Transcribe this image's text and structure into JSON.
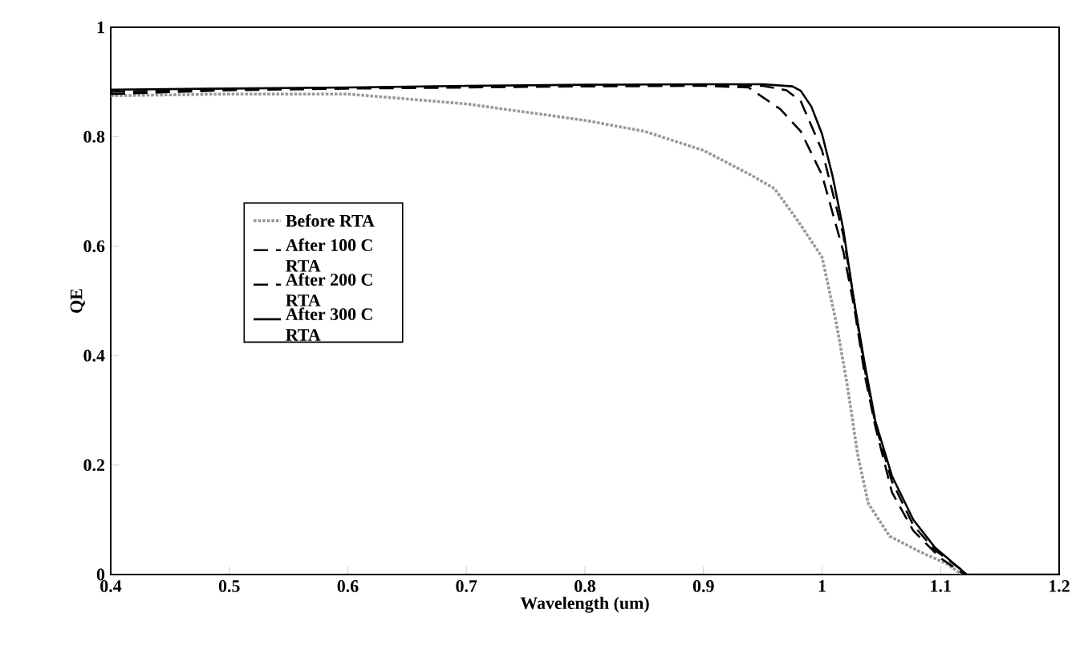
{
  "chart_data": {
    "type": "line",
    "xlabel": "Wavelength (um)",
    "ylabel": "QE",
    "xlim": [
      0.4,
      1.2
    ],
    "ylim": [
      0,
      1
    ],
    "xticks": [
      0.4,
      0.5,
      0.6,
      0.7,
      0.8,
      0.9,
      1,
      1.1,
      1.2
    ],
    "yticks": [
      0,
      0.2,
      0.4,
      0.6,
      0.8,
      1
    ],
    "legend": "left",
    "grid": false,
    "marker": "none",
    "series": [
      {
        "name": "Before RTA",
        "color": "#999999",
        "line_style": "dotted",
        "x": [
          0.4,
          0.5,
          0.6,
          0.7,
          0.8,
          0.85,
          0.9,
          0.94,
          0.96,
          0.98,
          1.0,
          1.012,
          1.021,
          1.03,
          1.039,
          1.057,
          1.084,
          1.105,
          1.118
        ],
        "values": [
          0.875,
          0.878,
          0.878,
          0.86,
          0.83,
          0.81,
          0.775,
          0.73,
          0.705,
          0.645,
          0.58,
          0.46,
          0.35,
          0.22,
          0.13,
          0.07,
          0.04,
          0.02,
          0.0
        ]
      },
      {
        "name": "After 100 C RTA",
        "color": "#000000",
        "line_style": "dashed",
        "x": [
          0.4,
          0.5,
          0.6,
          0.7,
          0.8,
          0.9,
          0.938,
          0.965,
          0.982,
          1.0,
          1.018,
          1.027,
          1.036,
          1.045,
          1.059,
          1.077,
          1.1,
          1.12
        ],
        "values": [
          0.878,
          0.885,
          0.888,
          0.89,
          0.892,
          0.893,
          0.89,
          0.85,
          0.81,
          0.73,
          0.59,
          0.49,
          0.365,
          0.27,
          0.15,
          0.08,
          0.03,
          0.0
        ]
      },
      {
        "name": "After 200 C RTA",
        "color": "#000000",
        "line_style": "dashed",
        "x": [
          0.4,
          0.5,
          0.6,
          0.7,
          0.8,
          0.9,
          0.95,
          0.97,
          0.982,
          1.0,
          1.018,
          1.027,
          1.036,
          1.045,
          1.059,
          1.077,
          1.095,
          1.123
        ],
        "values": [
          0.882,
          0.887,
          0.889,
          0.892,
          0.893,
          0.894,
          0.893,
          0.885,
          0.865,
          0.775,
          0.62,
          0.5,
          0.375,
          0.275,
          0.17,
          0.09,
          0.045,
          0.0
        ]
      },
      {
        "name": "After 300 C RTA",
        "color": "#000000",
        "line_style": "solid",
        "x": [
          0.4,
          0.5,
          0.6,
          0.7,
          0.8,
          0.9,
          0.95,
          0.975,
          0.982,
          0.991,
          1.0,
          1.009,
          1.018,
          1.027,
          1.036,
          1.045,
          1.059,
          1.077,
          1.095,
          1.122,
          1.15,
          1.2
        ],
        "values": [
          0.886,
          0.888,
          0.89,
          0.893,
          0.895,
          0.896,
          0.896,
          0.892,
          0.884,
          0.855,
          0.805,
          0.727,
          0.63,
          0.5,
          0.385,
          0.28,
          0.18,
          0.1,
          0.05,
          0.0,
          0.0,
          0.0
        ]
      }
    ]
  }
}
